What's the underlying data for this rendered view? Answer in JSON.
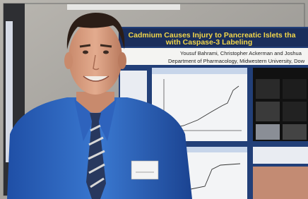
{
  "poster": {
    "title_lines": [
      "Cadmium Causes Injury to Pancreatic Islets tha",
      "with Caspase-3 Labeling"
    ],
    "authors": "Yousuf Bahrami, Christopher Ackerman and Joshua",
    "affiliation": "Department of Pharmacology, Midwestern University, Dow"
  }
}
